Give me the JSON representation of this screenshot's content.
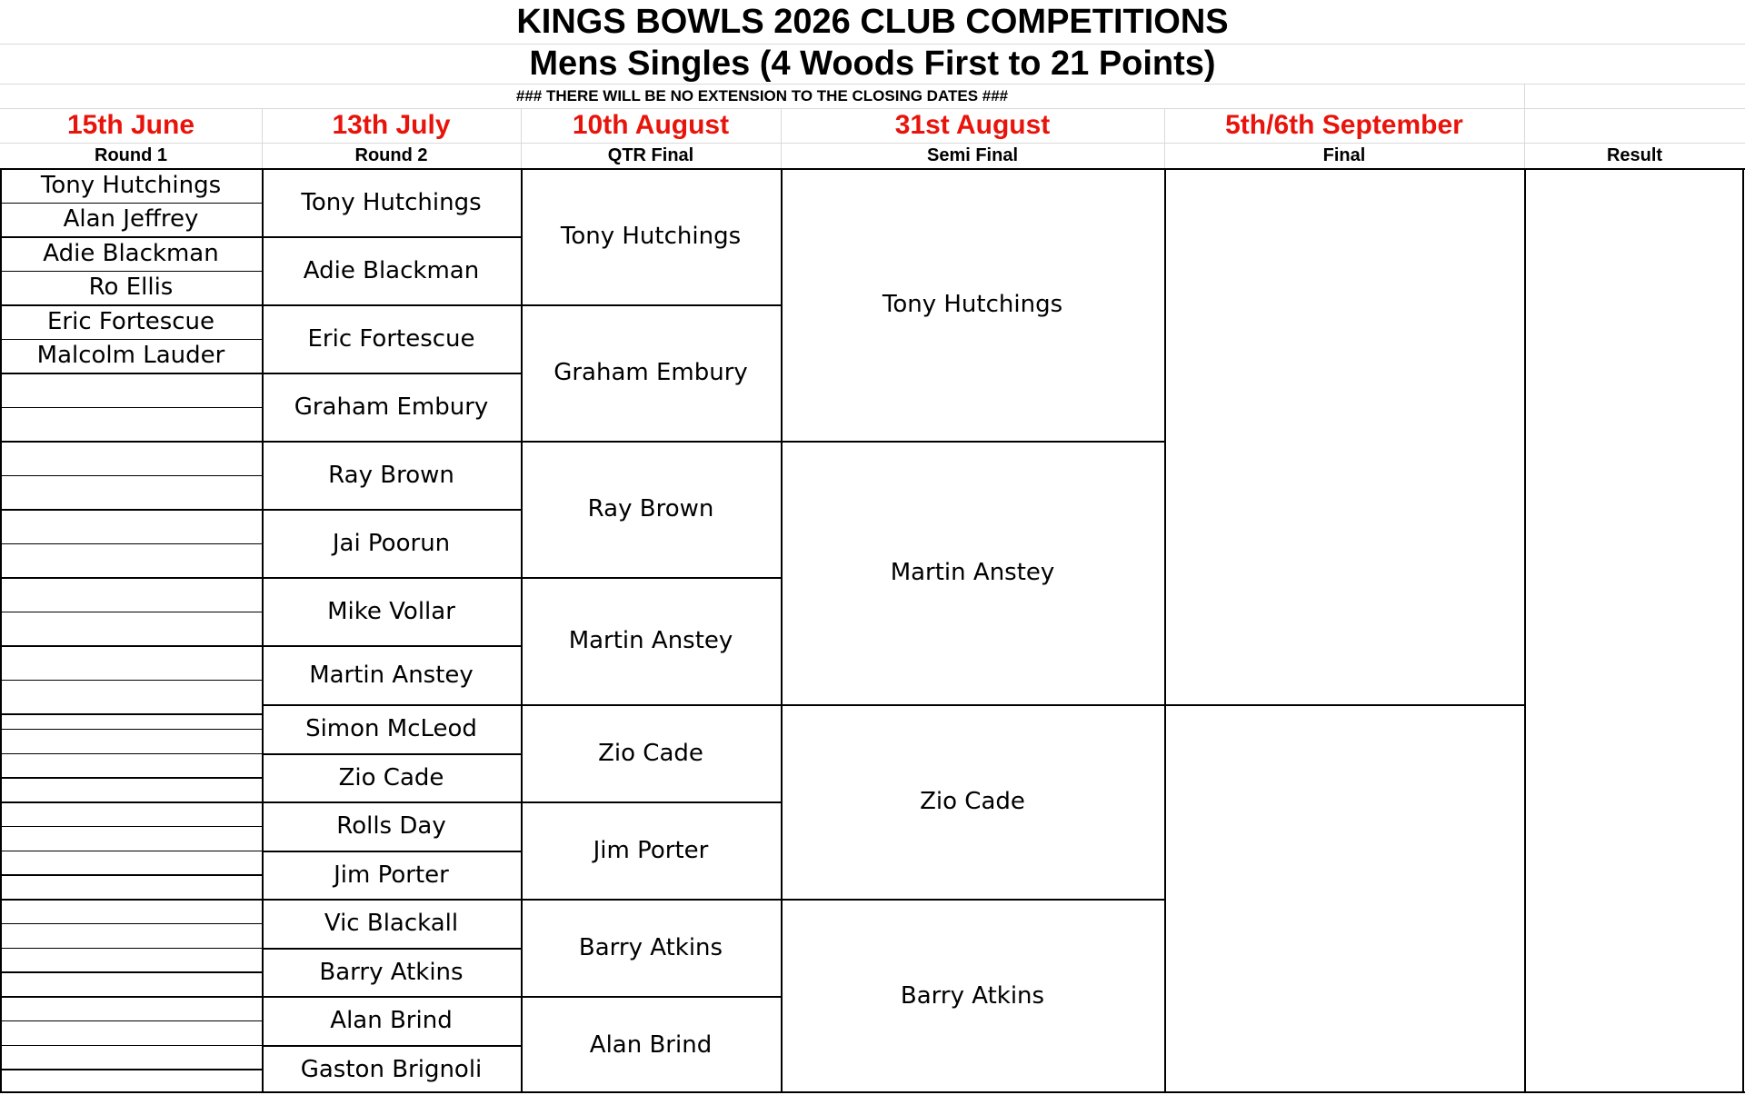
{
  "header": {
    "title": "KINGS BOWLS 2026 CLUB COMPETITIONS",
    "subtitle": "Mens Singles (4 Woods First to 21 Points)",
    "notice": "###  THERE WILL BE NO EXTENSION TO THE CLOSING DATES  ###"
  },
  "columns": [
    {
      "date": "15th June",
      "round": "Round 1"
    },
    {
      "date": "13th July",
      "round": "Round 2"
    },
    {
      "date": "10th August",
      "round": "QTR Final"
    },
    {
      "date": "31st August",
      "round": "Semi Final"
    },
    {
      "date": "5th/6th September",
      "round": "Final"
    },
    {
      "date": "",
      "round": "Result"
    }
  ],
  "bracket": {
    "round1": [
      "Tony Hutchings",
      "Alan Jeffrey",
      "Adie Blackman",
      "Ro Ellis",
      "Eric Fortescue",
      "Malcolm Lauder"
    ],
    "round2": [
      "Tony Hutchings",
      "Adie Blackman",
      "Eric Fortescue",
      "Graham Embury",
      "Ray Brown",
      "Jai Poorun",
      "Mike Vollar",
      "Martin Anstey",
      "Simon McLeod",
      "Zio Cade",
      "Rolls Day",
      "Jim Porter",
      "Vic Blackall",
      "Barry Atkins",
      "Alan Brind",
      "Gaston Brignoli"
    ],
    "quarter_final": [
      "Tony Hutchings",
      "Graham Embury",
      "Ray Brown",
      "Martin Anstey",
      "Zio Cade",
      "Jim Porter",
      "Barry Atkins",
      "Alan Brind"
    ],
    "semi_final": [
      "Tony Hutchings",
      "Martin Anstey",
      "Zio Cade",
      "Barry Atkins"
    ],
    "final": [
      "",
      ""
    ],
    "result": ""
  }
}
